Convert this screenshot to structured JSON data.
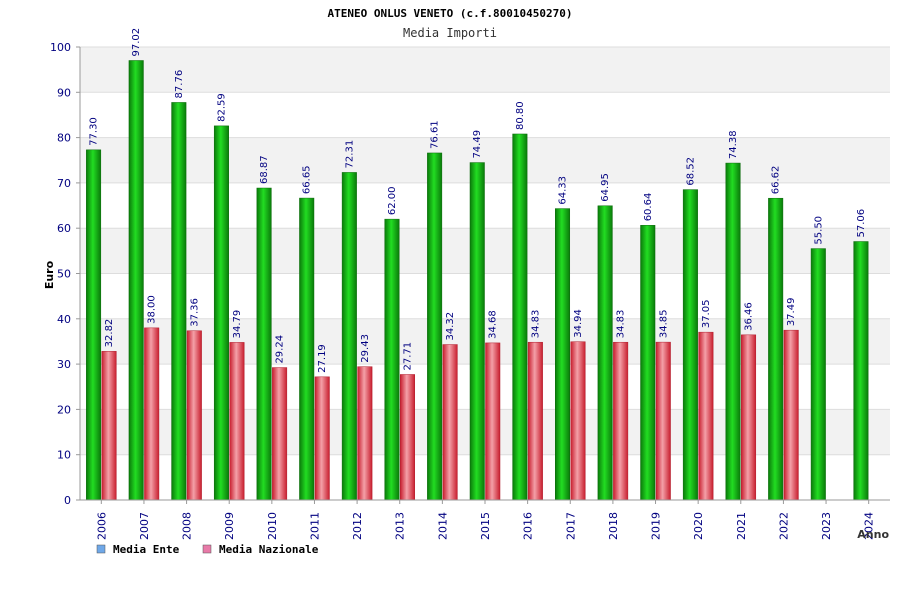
{
  "chart_data": {
    "type": "bar",
    "title": "ATENEO ONLUS VENETO (c.f.80010450270)",
    "subtitle": "Media Importi",
    "ylabel": "Euro",
    "xlabel": "Anno",
    "ylim": [
      0,
      100
    ],
    "yticks": [
      "0",
      "10",
      "20",
      "30",
      "40",
      "50",
      "60",
      "70",
      "80",
      "90",
      "100"
    ],
    "grid": true,
    "legend_position": "bottom-left",
    "categories": [
      "2006",
      "2007",
      "2008",
      "2009",
      "2010",
      "2011",
      "2012",
      "2013",
      "2014",
      "2015",
      "2016",
      "2017",
      "2018",
      "2019",
      "2020",
      "2021",
      "2022",
      "2023",
      "2024"
    ],
    "series": [
      {
        "name": "Media Ente",
        "color": "#1faa1f",
        "legend_color": "#6fa8e8",
        "values": [
          77.3,
          97.02,
          87.76,
          82.59,
          68.87,
          66.65,
          72.31,
          62.0,
          76.61,
          74.49,
          80.8,
          64.33,
          64.95,
          60.64,
          68.52,
          74.38,
          66.62,
          55.5,
          57.06
        ],
        "labels": [
          "77.30",
          "97.02",
          "87.76",
          "82.59",
          "68.87",
          "66.65",
          "72.31",
          "62.00",
          "76.61",
          "74.49",
          "80.80",
          "64.33",
          "64.95",
          "60.64",
          "68.52",
          "74.38",
          "66.62",
          "55.50",
          "57.06"
        ]
      },
      {
        "name": "Media Nazionale",
        "color": "#e83a4a",
        "legend_color": "#e87aa8",
        "values": [
          32.82,
          38.0,
          37.36,
          34.79,
          29.24,
          27.19,
          29.43,
          27.71,
          34.32,
          34.68,
          34.83,
          34.94,
          34.83,
          34.85,
          37.05,
          36.46,
          37.49,
          null,
          null
        ],
        "labels": [
          "32.82",
          "38.00",
          "37.36",
          "34.79",
          "29.24",
          "27.19",
          "29.43",
          "27.71",
          "34.32",
          "34.68",
          "34.83",
          "34.94",
          "34.83",
          "34.85",
          "37.05",
          "36.46",
          "37.49",
          null,
          null
        ]
      }
    ]
  }
}
